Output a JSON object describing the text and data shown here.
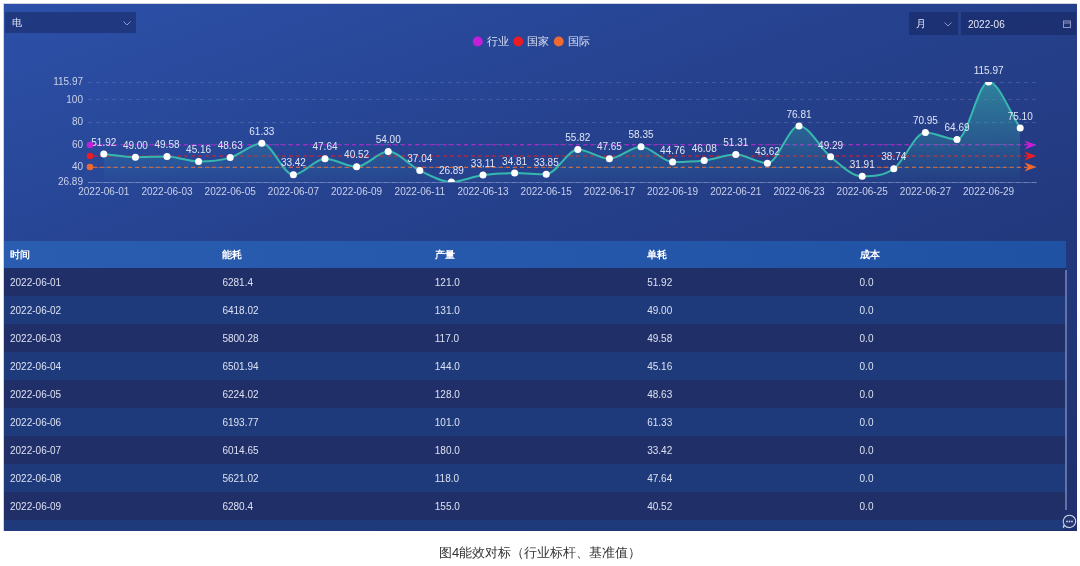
{
  "chart_data": [
    {
      "type": "area",
      "categories": [
        "2022-06-01",
        null,
        "2022-06-03",
        null,
        "2022-06-05",
        null,
        "2022-06-07",
        null,
        "2022-06-09",
        null,
        "2022-06-11",
        null,
        "2022-06-13",
        null,
        "2022-06-15",
        null,
        "2022-06-17",
        null,
        "2022-06-19",
        null,
        "2022-06-21",
        null,
        "2022-06-23",
        null,
        "2022-06-25",
        null,
        "2022-06-27",
        null,
        "2022-06-29",
        null
      ],
      "series": [
        {
          "color": "#37b8ae",
          "values": [
            51.92,
            49,
            49.58,
            45.16,
            48.63,
            61.33,
            33.42,
            47.64,
            40.52,
            54,
            37.04,
            26.89,
            33.11,
            34.81,
            33.85,
            55.82,
            47.65,
            58.35,
            44.76,
            46.08,
            51.31,
            43.62,
            76.81,
            49.29,
            31.91,
            38.74,
            70.95,
            64.69,
            115.97,
            75.1
          ],
          "value_labels": [
            "51.92",
            "49.00",
            "49.58",
            "45.16",
            "48.63",
            "61.33",
            "33.42",
            "47.64",
            "40.52",
            "54.00",
            "37.04",
            "26.89",
            "33.11",
            "34.81",
            "33.85",
            "55.82",
            "47.65",
            "58.35",
            "44.76",
            "46.08",
            "51.31",
            "43.62",
            "76.81",
            "49.29",
            "31.91",
            "38.74",
            "70.95",
            "64.69",
            "115.97",
            "75.10"
          ]
        }
      ],
      "ylim": [
        26.89,
        115.97
      ],
      "yticks": [
        26.89,
        40,
        60,
        80,
        100,
        115.97
      ],
      "grid": "y",
      "legend": "top",
      "marker": "circle",
      "ref_lines": [
        {
          "axis": "y",
          "value": 60,
          "label": "行业",
          "color": "#c41ed8",
          "line_style": "dashed"
        },
        {
          "axis": "y",
          "value": 50,
          "label": "国家",
          "color": "#ea1c24",
          "line_style": "dashed"
        },
        {
          "axis": "y",
          "value": 40,
          "label": "国际",
          "color": "#ee6a30",
          "line_style": "dashed"
        }
      ],
      "annotations": [
        "电",
        "月",
        "2022-06",
        "图4能效对标（行业标杆、基准值）"
      ]
    },
    {
      "type": "other",
      "xlabel": "时间",
      "categories": [
        "2022-06-01",
        "2022-06-02",
        "2022-06-03",
        "2022-06-04",
        "2022-06-05",
        "2022-06-06",
        "2022-06-07",
        "2022-06-08",
        "2022-06-09"
      ],
      "series": [
        {
          "name": "能耗",
          "color": "#dbe1f2",
          "values": [
            6281.4,
            6418.02,
            5800.28,
            6501.94,
            6224.02,
            6193.77,
            6014.65,
            5621.02,
            6280.4
          ],
          "value_labels": [
            "6281.4",
            "6418.02",
            "5800.28",
            "6501.94",
            "6224.02",
            "6193.77",
            "6014.65",
            "5621.02",
            "6280.4"
          ]
        },
        {
          "name": "产量",
          "color": "#dbe1f2",
          "values": [
            121,
            131,
            117,
            144,
            128,
            101,
            180,
            118,
            155
          ],
          "value_labels": [
            "121.0",
            "131.0",
            "117.0",
            "144.0",
            "128.0",
            "101.0",
            "180.0",
            "118.0",
            "155.0"
          ]
        },
        {
          "name": "单耗",
          "color": "#dbe1f2",
          "values": [
            51.92,
            49,
            49.58,
            45.16,
            48.63,
            61.33,
            33.42,
            47.64,
            40.52
          ],
          "value_labels": [
            "51.92",
            "49.00",
            "49.58",
            "45.16",
            "48.63",
            "61.33",
            "33.42",
            "47.64",
            "40.52"
          ]
        },
        {
          "name": "成本",
          "color": "#dbe1f2",
          "values": [
            0,
            0,
            0,
            0,
            0,
            0,
            0,
            0,
            0
          ],
          "value_labels": [
            "0.0",
            "0.0",
            "0.0",
            "0.0",
            "0.0",
            "0.0",
            "0.0",
            "0.0",
            "0.0"
          ]
        }
      ]
    }
  ]
}
